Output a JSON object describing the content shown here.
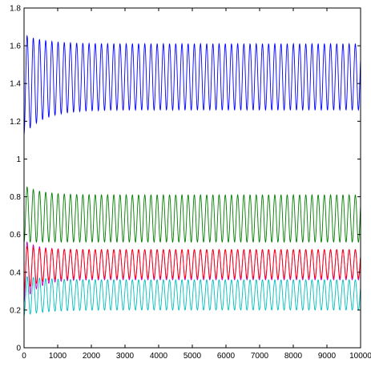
{
  "chart_data": {
    "type": "line",
    "title": "",
    "xlabel": "",
    "ylabel": "",
    "xlim": [
      0,
      10000
    ],
    "ylim": [
      0,
      1.8
    ],
    "x_ticks": [
      0,
      1000,
      2000,
      3000,
      4000,
      5000,
      6000,
      7000,
      8000,
      9000,
      10000
    ],
    "y_ticks": [
      0,
      0.2,
      0.4,
      0.6,
      0.8,
      1,
      1.2,
      1.4,
      1.6,
      1.8
    ],
    "grid": false,
    "legend": "none",
    "oscillation_period": 184,
    "series": [
      {
        "color": "#0000ff",
        "initial_min": 1.13,
        "initial_max": 1.66,
        "steady_min": 1.26,
        "steady_max": 1.61,
        "settle_time": 600
      },
      {
        "color": "#007f00",
        "initial_min": 0.56,
        "initial_max": 0.86,
        "steady_min": 0.56,
        "steady_max": 0.81,
        "settle_time": 500
      },
      {
        "color": "#bf00bf",
        "initial_min": 0.24,
        "initial_max": 0.57,
        "steady_min": 0.36,
        "steady_max": 0.52,
        "settle_time": 400
      },
      {
        "color": "#ff0000",
        "initial_min": 0.3,
        "initial_max": 0.54,
        "steady_min": 0.37,
        "steady_max": 0.52,
        "settle_time": 400
      },
      {
        "color": "#00bfbf",
        "initial_min": 0.17,
        "initial_max": 0.38,
        "steady_min": 0.2,
        "steady_max": 0.36,
        "settle_time": 600
      }
    ]
  }
}
